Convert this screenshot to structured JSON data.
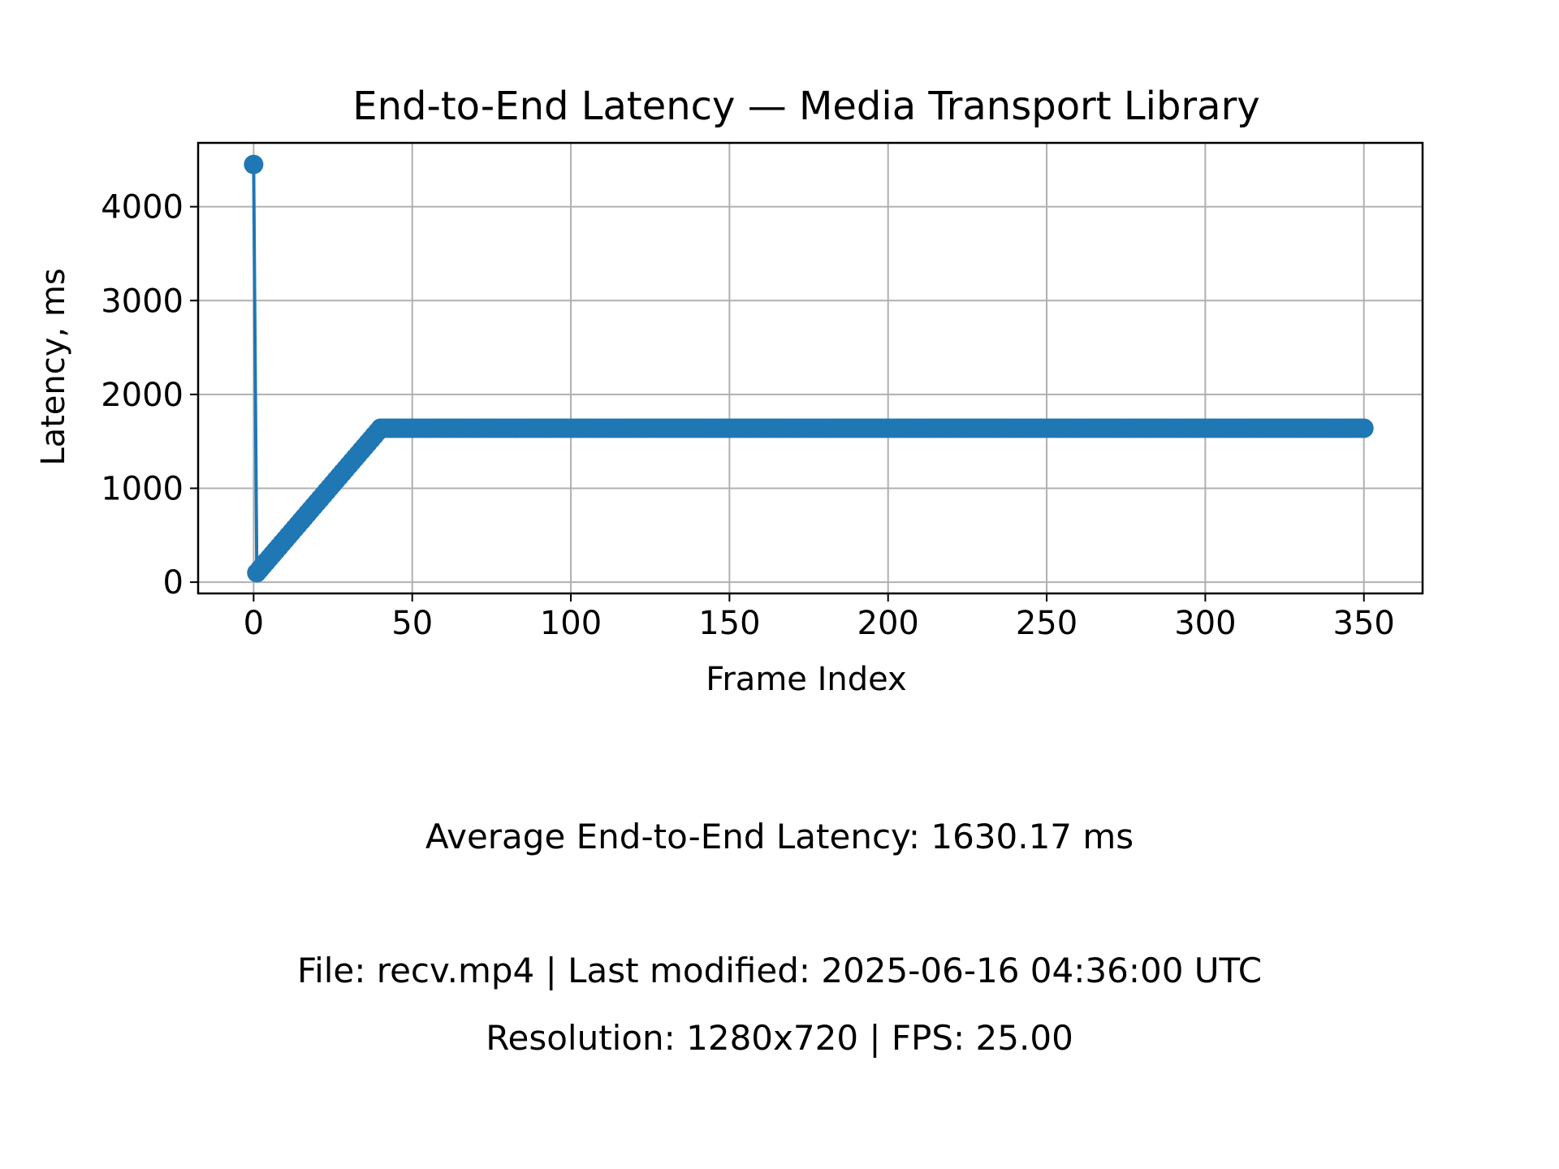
{
  "chart_data": {
    "type": "line",
    "title": "End-to-End Latency — Media Transport Library",
    "xlabel": "Frame Index",
    "ylabel": "Latency, ms",
    "xlim": [
      -17.5,
      368.5
    ],
    "ylim": [
      -120,
      4680
    ],
    "xticks": [
      0,
      50,
      100,
      150,
      200,
      250,
      300,
      350
    ],
    "yticks": [
      0,
      1000,
      2000,
      3000,
      4000
    ],
    "grid": true,
    "color": "#1f77b4",
    "marker": "circle",
    "series": [
      {
        "x_start": 0,
        "x_end": 350,
        "points": [
          [
            0,
            4450
          ],
          [
            1,
            100
          ],
          [
            40,
            1640
          ],
          [
            350,
            1640
          ]
        ]
      }
    ]
  },
  "stats": {
    "average_text": "Average End-to-End Latency: 1630.17 ms",
    "file_text": "File: recv.mp4 | Last modified: 2025-06-16 04:36:00 UTC",
    "resolution_text": "Resolution: 1280x720 | FPS: 25.00"
  }
}
